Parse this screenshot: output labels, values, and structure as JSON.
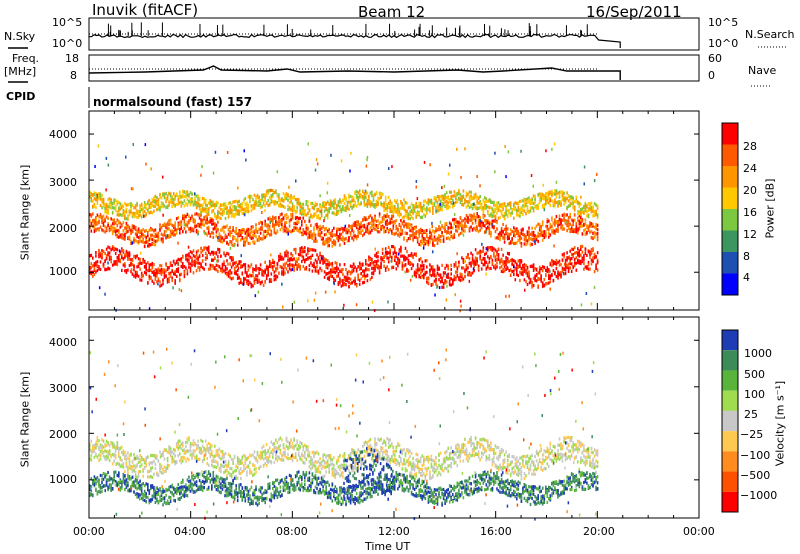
{
  "header": {
    "radar": "Inuvik (fitACF)",
    "beam": "Beam 12",
    "date": "16/Sep/2011"
  },
  "panels": {
    "nsky_label": "N.Sky",
    "nsky_ticks": [
      "10^5",
      "10^0"
    ],
    "nsearch_ticks": [
      "10^5",
      "10^0"
    ],
    "nsearch_label": "N.Search",
    "freq_label_1": "Freq.",
    "freq_label_2": "[MHz]",
    "freq_ticks": [
      "18",
      "8"
    ],
    "nave_ticks": [
      "60",
      "0"
    ],
    "nave_label": "Nave",
    "cpid_label": "CPID",
    "cpid_value": "normalsound (fast) 157"
  },
  "power_panel": {
    "ylabel": "Slant Range [km]",
    "yticks": [
      "4000",
      "3000",
      "2000",
      "1000"
    ],
    "cbar_label": "Power [dB]",
    "cbar_ticks": [
      "28",
      "24",
      "20",
      "16",
      "12",
      "8",
      "4"
    ],
    "cbar_colors": [
      "#ff0000",
      "#ff5a00",
      "#ff9600",
      "#ffc800",
      "#7cc840",
      "#3c9660",
      "#1e50b4",
      "#0000ff"
    ]
  },
  "velocity_panel": {
    "ylabel": "Slant Range [km]",
    "yticks": [
      "4000",
      "3000",
      "2000",
      "1000"
    ],
    "cbar_label": "Velocity [m s⁻¹]",
    "cbar_ticks": [
      "1000",
      "500",
      "100",
      "25",
      "−25",
      "−100",
      "−500",
      "−1000"
    ],
    "cbar_colors": [
      "#1e3cb4",
      "#3c8c5a",
      "#5ab43c",
      "#a0dc50",
      "#c8c8c8",
      "#ffc850",
      "#ff8c1e",
      "#ff5000",
      "#ff0000"
    ]
  },
  "xaxis": {
    "ticks": [
      "00:00",
      "04:00",
      "08:00",
      "12:00",
      "16:00",
      "20:00",
      "00:00"
    ],
    "label": "Time UT"
  },
  "chart_data": {
    "type": "heatmap",
    "title": "Inuvik (fitACF)  Beam 12  16/Sep/2011",
    "x_range_hours": [
      0,
      24
    ],
    "y_range_km": [
      180,
      4500
    ],
    "data_end_hours": 20,
    "power_bands": [
      {
        "x": [
          0,
          20
        ],
        "y_center": 1150,
        "y_width": 500,
        "level": "28"
      },
      {
        "x": [
          0,
          20
        ],
        "y_center": 1950,
        "y_width": 400,
        "level": "24"
      },
      {
        "x": [
          0,
          20
        ],
        "y_center": 2500,
        "y_width": 350,
        "level": "16"
      }
    ],
    "velocity_bands": [
      {
        "x": [
          0,
          20
        ],
        "y_center": 850,
        "y_width": 400,
        "level": "500"
      },
      {
        "x": [
          0,
          20
        ],
        "y_center": 1500,
        "y_width": 500,
        "level": "-25"
      },
      {
        "x": [
          10,
          12
        ],
        "y_center": 1000,
        "y_width": 800,
        "level": "1000"
      }
    ]
  }
}
